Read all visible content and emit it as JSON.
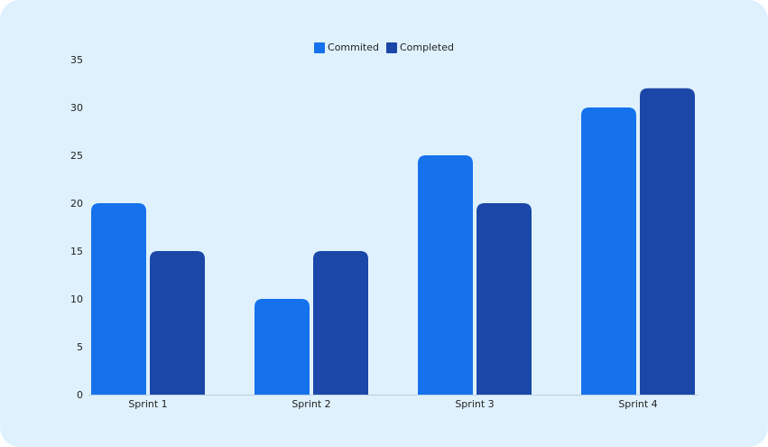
{
  "chart_data": {
    "type": "bar",
    "categories": [
      "Sprint 1",
      "Sprint 2",
      "Sprint 3",
      "Sprint 4"
    ],
    "series": [
      {
        "name": "Commited",
        "values": [
          20,
          10,
          25,
          30
        ],
        "color": "#1672ec"
      },
      {
        "name": "Completed",
        "values": [
          15,
          15,
          20,
          32
        ],
        "color": "#1a47a8"
      }
    ],
    "title": "",
    "xlabel": "",
    "ylabel": "",
    "ylim": [
      0,
      35
    ],
    "yticks": [
      0,
      5,
      10,
      15,
      20,
      25,
      30,
      35
    ],
    "grid": false,
    "legend": "top-center",
    "background": "#dff1fd"
  }
}
